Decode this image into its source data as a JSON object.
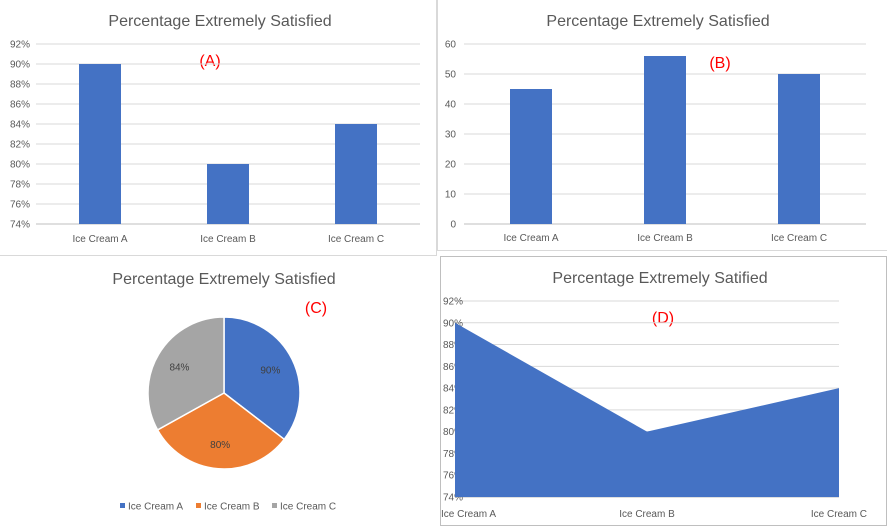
{
  "colors": {
    "series": "#4472c4",
    "pie": [
      "#4472c4",
      "#ed7d31",
      "#a5a5a5"
    ],
    "tag": "#ff0000"
  },
  "chart_data": [
    {
      "tag": "(A)",
      "type": "bar",
      "title": "Percentage Extremely Satisfied",
      "categories": [
        "Ice Cream A",
        "Ice Cream B",
        "Ice Cream C"
      ],
      "values": [
        90,
        80,
        84
      ],
      "ylim": [
        74,
        92
      ],
      "yticks": [
        "92%",
        "90%",
        "88%",
        "86%",
        "84%",
        "82%",
        "80%",
        "78%",
        "76%",
        "74%"
      ],
      "grid": true
    },
    {
      "tag": "(B)",
      "type": "bar",
      "title": "Percentage Extremely Satisfied",
      "categories": [
        "Ice Cream A",
        "Ice Cream B",
        "Ice Cream C"
      ],
      "values": [
        45,
        56,
        50
      ],
      "ylim": [
        0,
        60
      ],
      "yticks": [
        "60",
        "50",
        "40",
        "30",
        "20",
        "10",
        "0"
      ],
      "grid": true
    },
    {
      "tag": "(C)",
      "type": "pie",
      "title": "Percentage Extremely Satisfied",
      "categories": [
        "Ice Cream A",
        "Ice Cream B",
        "Ice Cream C"
      ],
      "values": [
        90,
        80,
        84
      ],
      "data_labels": [
        "90%",
        "80%",
        "84%"
      ],
      "legend": "bottom"
    },
    {
      "tag": "(D)",
      "type": "area",
      "title": "Percentage Extremely Satified",
      "categories": [
        "Ice Cream A",
        "Ice Cream B",
        "Ice Cream C"
      ],
      "values": [
        90,
        80,
        84
      ],
      "ylim": [
        74,
        92
      ],
      "yticks": [
        "92%",
        "90%",
        "88%",
        "86%",
        "84%",
        "82%",
        "80%",
        "78%",
        "76%",
        "74%"
      ],
      "grid": true
    }
  ]
}
